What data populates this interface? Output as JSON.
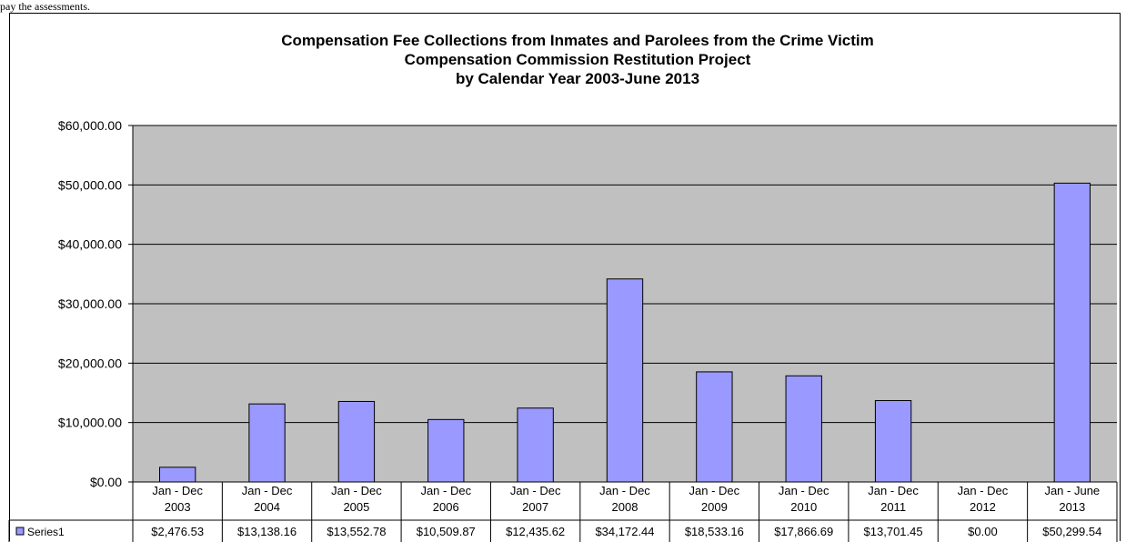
{
  "caption_fragment": "pay the assessments.",
  "chart_data": {
    "type": "bar",
    "title_lines": [
      "Compensation Fee Collections from Inmates and Parolees from the Crime Victim",
      "Compensation Commission Restitution Project",
      "by Calendar Year 2003-June 2013"
    ],
    "categories": [
      [
        "Jan - Dec",
        "2003"
      ],
      [
        "Jan - Dec",
        "2004"
      ],
      [
        "Jan - Dec",
        "2005"
      ],
      [
        "Jan - Dec",
        "2006"
      ],
      [
        "Jan - Dec",
        "2007"
      ],
      [
        "Jan - Dec",
        "2008"
      ],
      [
        "Jan - Dec",
        "2009"
      ],
      [
        "Jan - Dec",
        "2010"
      ],
      [
        "Jan - Dec",
        "2011"
      ],
      [
        "Jan - Dec",
        "2012"
      ],
      [
        "Jan - June",
        "2013"
      ]
    ],
    "series": [
      {
        "name": "Series1",
        "values": [
          2476.53,
          13138.16,
          13552.78,
          10509.87,
          12435.62,
          34172.44,
          18533.16,
          17866.69,
          13701.45,
          0.0,
          50299.54
        ],
        "value_labels": [
          "$2,476.53",
          "$13,138.16",
          "$13,552.78",
          "$10,509.87",
          "$12,435.62",
          "$34,172.44",
          "$18,533.16",
          "$17,866.69",
          "$13,701.45",
          "$0.00",
          "$50,299.54"
        ]
      }
    ],
    "y_ticks": [
      {
        "value": 0,
        "label": "$0.00"
      },
      {
        "value": 10000,
        "label": "$10,000.00"
      },
      {
        "value": 20000,
        "label": "$20,000.00"
      },
      {
        "value": 30000,
        "label": "$30,000.00"
      },
      {
        "value": 40000,
        "label": "$40,000.00"
      },
      {
        "value": 50000,
        "label": "$50,000.00"
      },
      {
        "value": 60000,
        "label": "$60,000.00"
      }
    ],
    "ylim": [
      0,
      60000
    ],
    "grid": true,
    "legend_placement": "data-table",
    "colors": {
      "plot_background": "#c0c0c0",
      "bar_fill": "#9999ff",
      "bar_stroke": "#000000",
      "gridline": "#000000"
    }
  }
}
